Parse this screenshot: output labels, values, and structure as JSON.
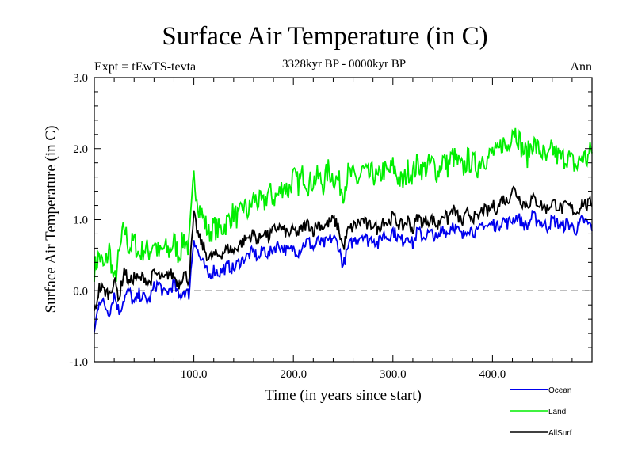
{
  "chart_data": {
    "type": "line",
    "title": "Surface Air Temperature (in C)",
    "subtitle": "3328kyr BP - 0000kyr BP",
    "left_label": "Expt = tEwTS-tevta",
    "right_label": "Ann",
    "xlabel": "Time (in years since start)",
    "ylabel": "Surface Air Temperature (in C)",
    "xlim": [
      0,
      500
    ],
    "ylim": [
      -1.0,
      3.0
    ],
    "x_ticks": [
      100,
      200,
      300,
      400
    ],
    "x_tick_labels": [
      "100.0",
      "200.0",
      "300.0",
      "400.0"
    ],
    "y_ticks": [
      -1,
      0,
      1,
      2,
      3
    ],
    "y_tick_labels": [
      "-1.0",
      "0.0",
      "1.0",
      "2.0",
      "3.0"
    ],
    "reference_line": {
      "y": 0.0,
      "style": "dashed"
    },
    "legend_position": "bottom-right",
    "x_step": 5,
    "series": [
      {
        "name": "Ocean",
        "color": "#0000ee",
        "values": [
          -0.6,
          -0.1,
          -0.2,
          -0.3,
          -0.05,
          -0.3,
          -0.1,
          0.0,
          -0.2,
          -0.05,
          -0.1,
          -0.15,
          0.05,
          0.1,
          -0.05,
          0.0,
          0.1,
          -0.1,
          0.0,
          -0.05,
          0.75,
          0.5,
          0.35,
          0.2,
          0.3,
          0.25,
          0.3,
          0.35,
          0.3,
          0.4,
          0.45,
          0.5,
          0.55,
          0.45,
          0.6,
          0.5,
          0.6,
          0.65,
          0.6,
          0.55,
          0.6,
          0.55,
          0.65,
          0.7,
          0.6,
          0.7,
          0.65,
          0.7,
          0.75,
          0.65,
          0.35,
          0.6,
          0.7,
          0.75,
          0.8,
          0.7,
          0.75,
          0.65,
          0.8,
          0.75,
          0.85,
          0.75,
          0.7,
          0.8,
          0.65,
          0.85,
          0.75,
          0.8,
          0.8,
          0.7,
          0.9,
          0.8,
          0.95,
          0.85,
          0.75,
          0.9,
          0.85,
          0.8,
          0.95,
          0.9,
          0.95,
          0.9,
          1.0,
          0.95,
          1.0,
          1.05,
          0.95,
          0.9,
          1.05,
          1.0,
          0.95,
          0.9,
          1.0,
          0.95,
          0.9,
          0.95,
          0.9,
          0.85,
          1.0,
          0.95,
          0.9
        ]
      },
      {
        "name": "Land",
        "color": "#00ee00",
        "values": [
          0.3,
          0.5,
          0.3,
          0.6,
          0.1,
          0.5,
          0.9,
          0.6,
          0.7,
          0.5,
          0.6,
          0.55,
          0.7,
          0.5,
          0.6,
          0.55,
          0.7,
          0.5,
          0.75,
          0.6,
          1.6,
          1.2,
          1.0,
          0.8,
          0.9,
          0.85,
          0.9,
          1.0,
          1.1,
          1.0,
          1.2,
          1.1,
          1.3,
          1.25,
          1.2,
          1.4,
          1.3,
          1.35,
          1.5,
          1.4,
          1.6,
          1.5,
          1.65,
          1.5,
          1.55,
          1.6,
          1.5,
          1.7,
          1.6,
          1.55,
          1.4,
          1.65,
          1.6,
          1.55,
          1.7,
          1.6,
          1.65,
          1.55,
          1.7,
          1.65,
          1.75,
          1.6,
          1.5,
          1.7,
          1.65,
          1.8,
          1.7,
          1.75,
          1.8,
          1.65,
          1.85,
          1.75,
          1.9,
          1.8,
          1.7,
          1.85,
          1.8,
          1.75,
          1.9,
          1.85,
          1.95,
          1.9,
          2.1,
          2.0,
          2.3,
          2.2,
          2.0,
          1.9,
          2.1,
          2.0,
          1.95,
          1.8,
          2.0,
          1.9,
          1.85,
          1.9,
          1.8,
          1.75,
          1.9,
          1.85,
          2.0
        ]
      },
      {
        "name": "AllSurf",
        "color": "#000000",
        "values": [
          -0.35,
          0.05,
          0.0,
          -0.05,
          0.15,
          -0.1,
          0.3,
          0.1,
          0.2,
          0.15,
          0.2,
          0.1,
          0.25,
          0.2,
          0.15,
          0.25,
          0.2,
          0.1,
          0.25,
          0.15,
          1.05,
          0.75,
          0.6,
          0.45,
          0.5,
          0.5,
          0.55,
          0.6,
          0.55,
          0.65,
          0.7,
          0.75,
          0.8,
          0.7,
          0.85,
          0.75,
          0.85,
          0.9,
          0.85,
          0.8,
          0.85,
          0.8,
          0.9,
          0.95,
          0.85,
          0.95,
          0.9,
          0.95,
          1.0,
          0.9,
          0.6,
          0.85,
          0.9,
          0.95,
          1.0,
          0.9,
          0.95,
          0.85,
          1.0,
          0.95,
          1.05,
          0.95,
          0.9,
          1.0,
          0.85,
          1.05,
          0.95,
          1.0,
          1.0,
          0.9,
          1.1,
          1.0,
          1.15,
          1.05,
          0.95,
          1.1,
          1.05,
          1.0,
          1.15,
          1.1,
          1.2,
          1.15,
          1.3,
          1.25,
          1.45,
          1.35,
          1.25,
          1.2,
          1.3,
          1.25,
          1.2,
          1.15,
          1.25,
          1.2,
          1.15,
          1.2,
          1.15,
          1.1,
          1.25,
          1.2,
          1.25
        ]
      }
    ]
  }
}
